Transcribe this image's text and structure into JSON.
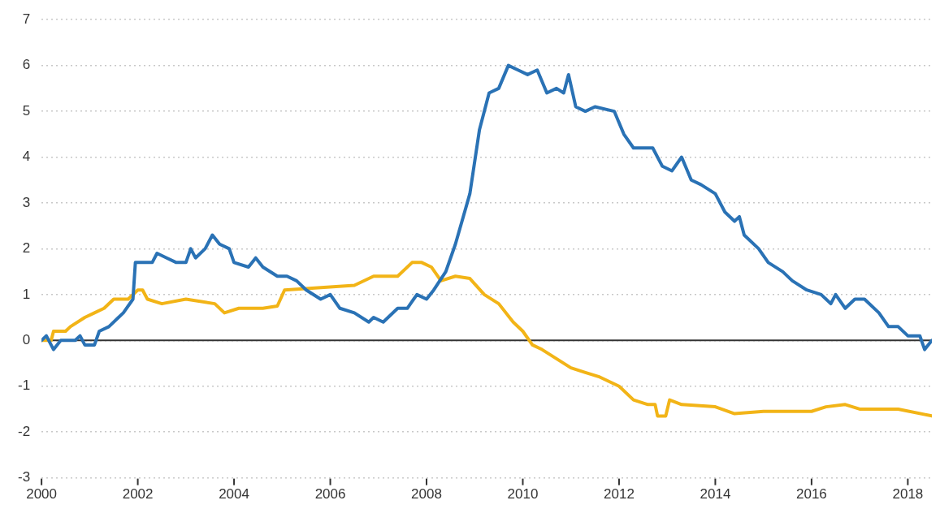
{
  "chart_data": {
    "type": "line",
    "xlim": [
      2000,
      2018.5
    ],
    "xticks": [
      2000,
      2002,
      2004,
      2006,
      2008,
      2010,
      2012,
      2014,
      2016,
      2018
    ],
    "ylim": [
      -3,
      7
    ],
    "yticks": [
      -3,
      -2,
      -1,
      0,
      1,
      2,
      3,
      4,
      5,
      6,
      7
    ],
    "grid": "y",
    "legend": false,
    "marker": "none",
    "line_style": "solid",
    "ref_lines": [
      {
        "axis": "y",
        "value": 0,
        "color": "#333333"
      }
    ],
    "series": [
      {
        "color": "#2a72b5",
        "x": [
          2000,
          2000.1,
          2000.25,
          2000.4,
          2000.7,
          2000.8,
          2000.9,
          2001.1,
          2001.2,
          2001.4,
          2001.6,
          2001.7,
          2001.9,
          2001.95,
          2002.3,
          2002.4,
          2002.6,
          2002.8,
          2003,
          2003.1,
          2003.2,
          2003.4,
          2003.55,
          2003.7,
          2003.9,
          2004,
          2004.3,
          2004.45,
          2004.6,
          2004.9,
          2005.1,
          2005.3,
          2005.5,
          2005.8,
          2006,
          2006.2,
          2006.5,
          2006.8,
          2006.9,
          2007.1,
          2007.4,
          2007.6,
          2007.8,
          2008,
          2008.15,
          2008.4,
          2008.6,
          2008.9,
          2009.1,
          2009.3,
          2009.5,
          2009.7,
          2009.9,
          2010.1,
          2010.3,
          2010.5,
          2010.7,
          2010.85,
          2010.95,
          2011.1,
          2011.3,
          2011.5,
          2011.9,
          2012.1,
          2012.3,
          2012.7,
          2012.9,
          2013.1,
          2013.3,
          2013.5,
          2013.7,
          2014,
          2014.2,
          2014.4,
          2014.5,
          2014.6,
          2014.9,
          2015.1,
          2015.4,
          2015.6,
          2015.9,
          2016.2,
          2016.4,
          2016.5,
          2016.7,
          2016.9,
          2017.1,
          2017.4,
          2017.6,
          2017.8,
          2018,
          2018.25,
          2018.35,
          2018.5
        ],
        "values": [
          0,
          0.1,
          -0.2,
          0,
          0,
          0.1,
          -0.1,
          -0.1,
          0.2,
          0.3,
          0.5,
          0.6,
          0.9,
          1.7,
          1.7,
          1.9,
          1.8,
          1.7,
          1.7,
          2.0,
          1.8,
          2.0,
          2.3,
          2.1,
          2.0,
          1.7,
          1.6,
          1.8,
          1.6,
          1.4,
          1.4,
          1.3,
          1.1,
          0.9,
          1.0,
          0.7,
          0.6,
          0.4,
          0.5,
          0.4,
          0.7,
          0.7,
          1.0,
          0.9,
          1.1,
          1.5,
          2.1,
          3.2,
          4.6,
          5.4,
          5.5,
          6.0,
          5.9,
          5.8,
          5.9,
          5.4,
          5.5,
          5.4,
          5.8,
          5.1,
          5.0,
          5.1,
          5.0,
          4.5,
          4.2,
          4.2,
          3.8,
          3.7,
          4.0,
          3.5,
          3.4,
          3.2,
          2.8,
          2.6,
          2.7,
          2.3,
          2.0,
          1.7,
          1.5,
          1.3,
          1.1,
          1.0,
          0.8,
          1.0,
          0.7,
          0.9,
          0.9,
          0.6,
          0.3,
          0.3,
          0.1,
          0.1,
          -0.2,
          0
        ]
      },
      {
        "color": "#f2b417",
        "x": [
          2000,
          2000.2,
          2000.25,
          2000.5,
          2000.6,
          2000.9,
          2001.1,
          2001.3,
          2001.5,
          2001.8,
          2002,
          2002.1,
          2002.2,
          2002.5,
          2003,
          2003.6,
          2003.8,
          2004.1,
          2004.6,
          2004.9,
          2005.05,
          2006.5,
          2006.9,
          2007.4,
          2007.7,
          2007.9,
          2008.1,
          2008.3,
          2008.6,
          2008.9,
          2009.2,
          2009.5,
          2009.8,
          2010,
          2010.2,
          2010.4,
          2010.7,
          2011,
          2011.3,
          2011.6,
          2012,
          2012.3,
          2012.6,
          2012.75,
          2012.8,
          2012.97,
          2013.05,
          2013.3,
          2014,
          2014.4,
          2015,
          2016,
          2016.3,
          2016.7,
          2017,
          2017.8,
          2018.5
        ],
        "values": [
          0,
          0,
          0.2,
          0.2,
          0.3,
          0.5,
          0.6,
          0.7,
          0.9,
          0.9,
          1.1,
          1.1,
          0.9,
          0.8,
          0.9,
          0.8,
          0.6,
          0.7,
          0.7,
          0.75,
          1.1,
          1.2,
          1.4,
          1.4,
          1.7,
          1.7,
          1.6,
          1.3,
          1.4,
          1.35,
          1.0,
          0.8,
          0.4,
          0.2,
          -0.1,
          -0.2,
          -0.4,
          -0.6,
          -0.7,
          -0.8,
          -1.0,
          -1.3,
          -1.4,
          -1.4,
          -1.65,
          -1.65,
          -1.3,
          -1.4,
          -1.45,
          -1.6,
          -1.55,
          -1.55,
          -1.45,
          -1.4,
          -1.5,
          -1.5,
          -1.65
        ]
      }
    ]
  }
}
